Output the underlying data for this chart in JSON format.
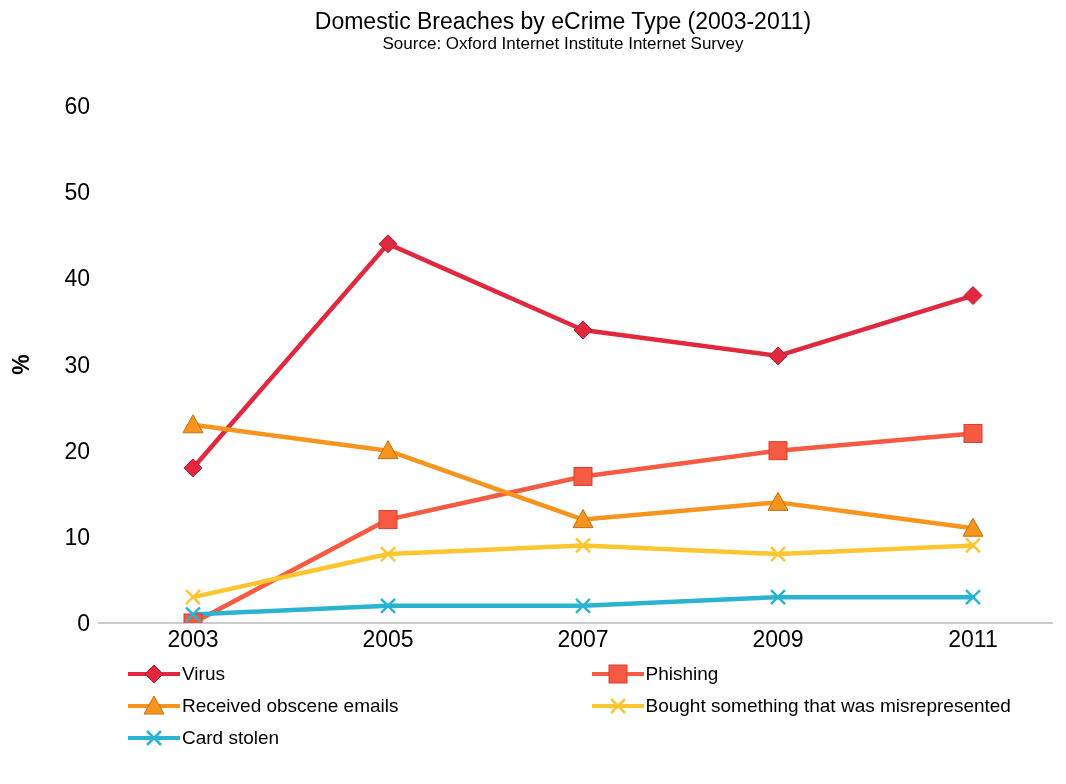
{
  "chart_data": {
    "type": "line",
    "title": "Domestic Breaches by eCrime Type (2003-2011)",
    "subtitle": "Source: Oxford Internet Institute Internet Survey",
    "ylabel": "%",
    "categories": [
      "2003",
      "2005",
      "2007",
      "2009",
      "2011"
    ],
    "series": [
      {
        "name": "Virus",
        "color": "#e2283e",
        "marker": "diamond",
        "values": [
          18,
          44,
          34,
          31,
          38
        ]
      },
      {
        "name": "Phishing",
        "color": "#f65a42",
        "marker": "square",
        "values": [
          0,
          12,
          17,
          20,
          22
        ]
      },
      {
        "name": "Received obscene emails",
        "color": "#f7941e",
        "marker": "triangle",
        "values": [
          23,
          20,
          12,
          14,
          11
        ]
      },
      {
        "name": "Bought something that was misrepresented",
        "color": "#fdc530",
        "marker": "cross",
        "values": [
          3,
          8,
          9,
          8,
          9
        ]
      },
      {
        "name": "Card stolen",
        "color": "#2bb3d4",
        "marker": "cross",
        "values": [
          1,
          2,
          2,
          3,
          3
        ]
      }
    ],
    "ylim": [
      0,
      60
    ],
    "yticks": [
      0,
      10,
      20,
      30,
      40,
      50,
      60
    ],
    "legend": "bottom",
    "line_style": "solid"
  }
}
